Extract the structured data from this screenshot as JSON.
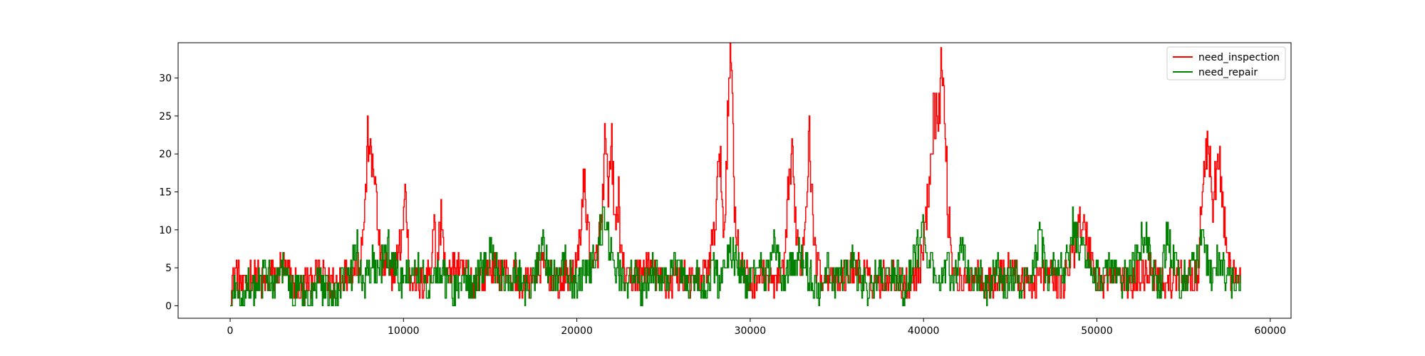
{
  "chart_data": {
    "type": "line",
    "title": "",
    "xlabel": "",
    "ylabel": "",
    "xlim": [
      -3000,
      61200
    ],
    "ylim": [
      -1.65,
      34.65
    ],
    "xticks": [
      0,
      10000,
      20000,
      30000,
      40000,
      50000,
      60000
    ],
    "yticks": [
      0,
      5,
      10,
      15,
      20,
      25,
      30
    ],
    "grid": false,
    "legend_position": "upper right",
    "series": [
      {
        "name": "need_inspection",
        "color": "#ff0000",
        "points": [
          [
            0,
            1
          ],
          [
            300,
            5
          ],
          [
            700,
            2
          ],
          [
            1200,
            4
          ],
          [
            2000,
            3
          ],
          [
            3000,
            5
          ],
          [
            4000,
            2
          ],
          [
            5000,
            4
          ],
          [
            6000,
            3
          ],
          [
            7000,
            5
          ],
          [
            7500,
            6
          ],
          [
            7800,
            14
          ],
          [
            7900,
            21
          ],
          [
            8000,
            23
          ],
          [
            8100,
            18
          ],
          [
            8300,
            19
          ],
          [
            8500,
            10
          ],
          [
            8800,
            5
          ],
          [
            9300,
            4
          ],
          [
            9800,
            8
          ],
          [
            10000,
            12
          ],
          [
            10100,
            16
          ],
          [
            10300,
            4
          ],
          [
            11000,
            3
          ],
          [
            11600,
            5
          ],
          [
            11700,
            13
          ],
          [
            11900,
            4
          ],
          [
            12100,
            11
          ],
          [
            12200,
            12
          ],
          [
            12400,
            4
          ],
          [
            13000,
            5
          ],
          [
            14000,
            3
          ],
          [
            15000,
            5
          ],
          [
            16000,
            4
          ],
          [
            17000,
            3
          ],
          [
            18000,
            5
          ],
          [
            19000,
            3
          ],
          [
            20000,
            5
          ],
          [
            20400,
            16
          ],
          [
            20600,
            11
          ],
          [
            20900,
            4
          ],
          [
            21400,
            10
          ],
          [
            21600,
            21
          ],
          [
            21800,
            14
          ],
          [
            22000,
            21
          ],
          [
            22200,
            10
          ],
          [
            22400,
            14
          ],
          [
            22600,
            5
          ],
          [
            23000,
            3
          ],
          [
            24000,
            5
          ],
          [
            25000,
            3
          ],
          [
            26000,
            4
          ],
          [
            27000,
            3
          ],
          [
            27500,
            5
          ],
          [
            27900,
            9
          ],
          [
            28100,
            17
          ],
          [
            28300,
            18
          ],
          [
            28500,
            8
          ],
          [
            28700,
            28
          ],
          [
            28900,
            33
          ],
          [
            29100,
            12
          ],
          [
            29400,
            5
          ],
          [
            30000,
            3
          ],
          [
            30500,
            4
          ],
          [
            31500,
            3
          ],
          [
            32000,
            5
          ],
          [
            32200,
            17
          ],
          [
            32400,
            19
          ],
          [
            32600,
            12
          ],
          [
            32900,
            4
          ],
          [
            33200,
            14
          ],
          [
            33400,
            22
          ],
          [
            33600,
            12
          ],
          [
            33800,
            5
          ],
          [
            34200,
            4
          ],
          [
            35000,
            3
          ],
          [
            36000,
            5
          ],
          [
            37000,
            3
          ],
          [
            38000,
            4
          ],
          [
            39000,
            3
          ],
          [
            39800,
            5
          ],
          [
            40200,
            13
          ],
          [
            40400,
            20
          ],
          [
            40600,
            26
          ],
          [
            40800,
            24
          ],
          [
            41000,
            31
          ],
          [
            41200,
            26
          ],
          [
            41400,
            12
          ],
          [
            41700,
            5
          ],
          [
            42000,
            3
          ],
          [
            43000,
            4
          ],
          [
            44000,
            3
          ],
          [
            45000,
            5
          ],
          [
            46000,
            3
          ],
          [
            47000,
            4
          ],
          [
            48000,
            3
          ],
          [
            48400,
            5
          ],
          [
            48700,
            8
          ],
          [
            48900,
            12
          ],
          [
            49200,
            10
          ],
          [
            49600,
            7
          ],
          [
            49800,
            5
          ],
          [
            50000,
            3
          ],
          [
            51000,
            4
          ],
          [
            52000,
            3
          ],
          [
            53000,
            5
          ],
          [
            54000,
            3
          ],
          [
            55000,
            4
          ],
          [
            55800,
            4
          ],
          [
            56000,
            11
          ],
          [
            56200,
            18
          ],
          [
            56400,
            21
          ],
          [
            56700,
            13
          ],
          [
            56900,
            18
          ],
          [
            57100,
            18
          ],
          [
            57300,
            11
          ],
          [
            57600,
            5
          ],
          [
            58000,
            3
          ],
          [
            58300,
            5
          ]
        ]
      },
      {
        "name": "need_repair",
        "color": "#008000",
        "points": [
          [
            0,
            0
          ],
          [
            300,
            2
          ],
          [
            600,
            1
          ],
          [
            1000,
            3
          ],
          [
            1500,
            2
          ],
          [
            2000,
            4
          ],
          [
            2500,
            3
          ],
          [
            3000,
            5
          ],
          [
            3500,
            2
          ],
          [
            4000,
            3
          ],
          [
            4500,
            1
          ],
          [
            5000,
            3
          ],
          [
            5500,
            2
          ],
          [
            6000,
            1
          ],
          [
            6500,
            3
          ],
          [
            7000,
            4
          ],
          [
            7200,
            9
          ],
          [
            7400,
            5
          ],
          [
            7800,
            3
          ],
          [
            8200,
            6
          ],
          [
            8500,
            4
          ],
          [
            9000,
            7
          ],
          [
            9500,
            5
          ],
          [
            10000,
            3
          ],
          [
            10500,
            6
          ],
          [
            11000,
            4
          ],
          [
            11500,
            2
          ],
          [
            12000,
            5
          ],
          [
            12500,
            3
          ],
          [
            13000,
            2
          ],
          [
            13500,
            4
          ],
          [
            14000,
            3
          ],
          [
            14500,
            5
          ],
          [
            15000,
            7
          ],
          [
            15500,
            4
          ],
          [
            16000,
            3
          ],
          [
            16500,
            5
          ],
          [
            17000,
            2
          ],
          [
            17500,
            3
          ],
          [
            18000,
            8
          ],
          [
            18300,
            5
          ],
          [
            18800,
            4
          ],
          [
            19300,
            6
          ],
          [
            19800,
            3
          ],
          [
            20300,
            4
          ],
          [
            20800,
            5
          ],
          [
            21300,
            9
          ],
          [
            21600,
            12
          ],
          [
            21900,
            8
          ],
          [
            22300,
            5
          ],
          [
            22800,
            3
          ],
          [
            23300,
            4
          ],
          [
            23800,
            2
          ],
          [
            24300,
            5
          ],
          [
            24800,
            3
          ],
          [
            25300,
            4
          ],
          [
            25800,
            6
          ],
          [
            26300,
            3
          ],
          [
            26800,
            4
          ],
          [
            27300,
            2
          ],
          [
            27800,
            5
          ],
          [
            28200,
            3
          ],
          [
            28600,
            6
          ],
          [
            29000,
            7
          ],
          [
            29400,
            4
          ],
          [
            29900,
            3
          ],
          [
            30400,
            5
          ],
          [
            30900,
            4
          ],
          [
            31400,
            8
          ],
          [
            31900,
            3
          ],
          [
            32400,
            5
          ],
          [
            32900,
            7
          ],
          [
            33400,
            4
          ],
          [
            33900,
            2
          ],
          [
            34400,
            5
          ],
          [
            34900,
            3
          ],
          [
            35400,
            4
          ],
          [
            35900,
            6
          ],
          [
            36400,
            3
          ],
          [
            36900,
            2
          ],
          [
            37400,
            5
          ],
          [
            37900,
            3
          ],
          [
            38400,
            4
          ],
          [
            38900,
            2
          ],
          [
            39400,
            6
          ],
          [
            39800,
            8
          ],
          [
            40000,
            10
          ],
          [
            40300,
            6
          ],
          [
            40700,
            3
          ],
          [
            41200,
            5
          ],
          [
            41700,
            4
          ],
          [
            42200,
            7
          ],
          [
            42700,
            3
          ],
          [
            43200,
            4
          ],
          [
            43700,
            2
          ],
          [
            44200,
            5
          ],
          [
            44700,
            3
          ],
          [
            45200,
            4
          ],
          [
            45700,
            2
          ],
          [
            46200,
            5
          ],
          [
            46700,
            9
          ],
          [
            47100,
            4
          ],
          [
            47600,
            6
          ],
          [
            48100,
            4
          ],
          [
            48600,
            11
          ],
          [
            48900,
            8
          ],
          [
            49300,
            6
          ],
          [
            49800,
            4
          ],
          [
            50300,
            3
          ],
          [
            50800,
            5
          ],
          [
            51300,
            3
          ],
          [
            51800,
            4
          ],
          [
            52300,
            6
          ],
          [
            52800,
            9
          ],
          [
            53200,
            4
          ],
          [
            53700,
            3
          ],
          [
            54000,
            9
          ],
          [
            54300,
            8
          ],
          [
            54700,
            3
          ],
          [
            55200,
            4
          ],
          [
            55700,
            5
          ],
          [
            56100,
            9
          ],
          [
            56500,
            4
          ],
          [
            57000,
            6
          ],
          [
            57500,
            4
          ],
          [
            58000,
            3
          ],
          [
            58300,
            2
          ]
        ]
      }
    ],
    "noise_amplitude": 2
  }
}
